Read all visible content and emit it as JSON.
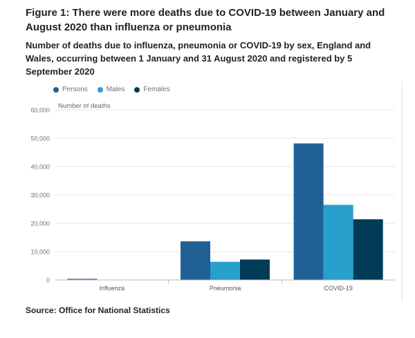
{
  "title": "Figure 1: There were more deaths due to COVID-19 between January and August 2020 than influenza or pneumonia",
  "subtitle": "Number of deaths due to influenza, pneumonia or COVID-19 by sex, England and Wales, occurring between 1 January and 31 August 2020 and registered by 5 September 2020",
  "source": "Source: Office for National Statistics",
  "colors": {
    "persons": "#206095",
    "males": "#27a0cc",
    "females": "#003c57"
  },
  "chart_data": {
    "type": "bar",
    "title": "",
    "xlabel": "",
    "ylabel": "Number of deaths",
    "categories": [
      "Influenza",
      "Pneumonia",
      "COVID-19"
    ],
    "series": [
      {
        "name": "Persons",
        "values": [
          394,
          13619,
          48168
        ]
      },
      {
        "name": "Males",
        "values": [
          0,
          6400,
          26500
        ]
      },
      {
        "name": "Females",
        "values": [
          0,
          7200,
          21400
        ]
      }
    ],
    "ylim": [
      0,
      60000
    ],
    "yticks": [
      "0",
      "10,000",
      "20,000",
      "30,000",
      "40,000",
      "50,000",
      "60,000"
    ],
    "grid": true,
    "legend": "top-left"
  }
}
